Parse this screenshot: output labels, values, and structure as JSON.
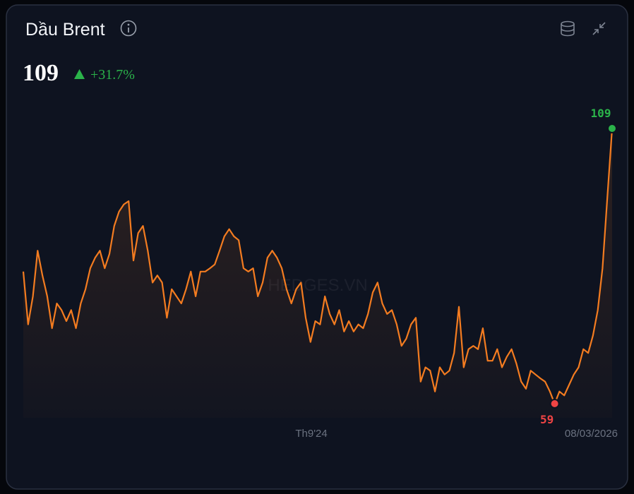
{
  "header": {
    "title": "Dầu Brent",
    "price": "109",
    "change": "+31.7%"
  },
  "watermark": "HEDGES.VN",
  "chart_data": {
    "type": "line",
    "color": "#f47c20",
    "values": [
      83,
      73.4,
      78.5,
      86.8,
      82.3,
      78.5,
      72.7,
      77.2,
      76,
      74,
      76,
      72.7,
      77.2,
      79.8,
      83.6,
      85.5,
      86.8,
      83.6,
      86.2,
      91.3,
      93.9,
      95.2,
      95.8,
      85,
      90,
      91.3,
      86.8,
      81,
      82.3,
      81,
      74.6,
      79.8,
      78.5,
      77.2,
      79.8,
      83,
      78.5,
      83,
      83,
      83.6,
      84.3,
      86.8,
      89.4,
      90.7,
      89.4,
      88.7,
      83.6,
      83,
      83.6,
      78.5,
      81,
      85.5,
      86.8,
      85.5,
      83.6,
      79.8,
      77.2,
      79.8,
      81,
      74.6,
      70.2,
      74,
      73.4,
      78.5,
      75.3,
      73.4,
      76,
      72.1,
      74,
      72.1,
      73.4,
      72.7,
      75.3,
      79.2,
      81,
      77.2,
      75.3,
      76,
      73.4,
      69.5,
      70.8,
      73.4,
      74.6,
      63,
      65.6,
      65,
      61.2,
      65.6,
      64.3,
      65,
      68.2,
      76.6,
      65.6,
      68.9,
      69.5,
      68.9,
      72.7,
      66.8,
      66.8,
      68.9,
      65.6,
      67.5,
      68.9,
      66.3,
      63,
      61.7,
      65,
      64.3,
      63.6,
      63,
      61.2,
      59,
      61.2,
      60.5,
      62.4,
      64.3,
      65.6,
      68.9,
      68.2,
      71.4,
      76,
      83.6,
      96.4,
      109
    ],
    "categories": [
      null,
      null,
      null,
      null,
      null,
      null,
      null,
      null,
      null,
      null,
      null,
      null,
      null,
      null,
      null,
      null,
      null,
      null,
      null,
      null,
      null,
      null,
      null,
      null,
      null,
      null,
      null,
      null,
      null,
      null,
      null,
      null,
      null,
      null,
      null,
      null,
      null,
      null,
      null,
      null,
      null,
      null,
      null,
      null,
      null,
      null,
      null,
      null,
      null,
      null,
      null,
      null,
      null,
      null,
      null,
      null,
      null,
      null,
      null,
      "Th9'24",
      null,
      null,
      null,
      null,
      null,
      null,
      null,
      null,
      null,
      null,
      null,
      null,
      null,
      null,
      null,
      null,
      null,
      null,
      null,
      null,
      null,
      null,
      null,
      null,
      null,
      null,
      null,
      null,
      null,
      null,
      null,
      null,
      null,
      null,
      null,
      null,
      null,
      null,
      null,
      null,
      null,
      null,
      null,
      null,
      null,
      null,
      null,
      null,
      null,
      null,
      null,
      null,
      null,
      null,
      null,
      null,
      null,
      null,
      null,
      null,
      null,
      null,
      null,
      "08/03/2026"
    ]
  }
}
